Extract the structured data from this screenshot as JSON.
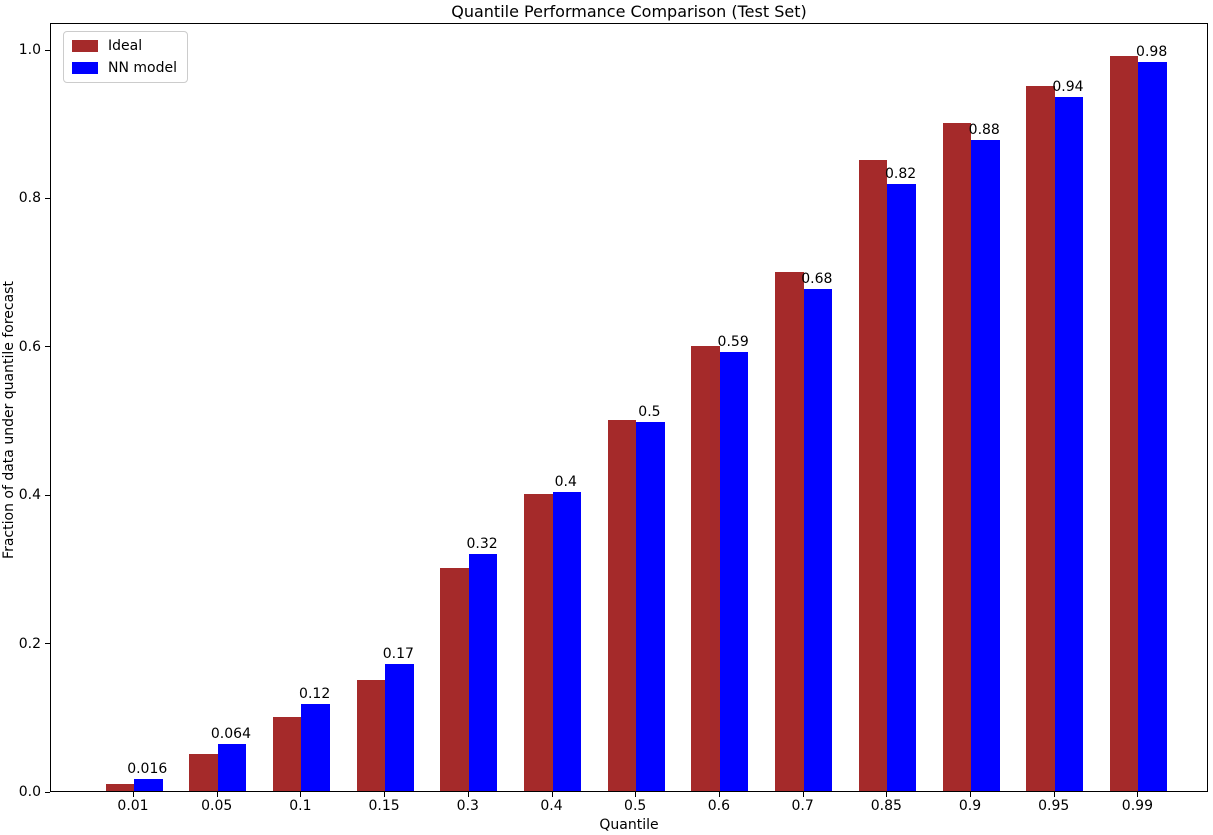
{
  "chart_data": {
    "type": "bar",
    "title": "Quantile Performance Comparison (Test Set)",
    "xlabel": "Quantile",
    "ylabel": "Fraction of data under quantile forecast",
    "categories": [
      "0.01",
      "0.05",
      "0.1",
      "0.15",
      "0.3",
      "0.4",
      "0.5",
      "0.6",
      "0.7",
      "0.85",
      "0.9",
      "0.95",
      "0.99"
    ],
    "series": [
      {
        "name": "Ideal",
        "color": "#A52A2A",
        "values": [
          0.01,
          0.05,
          0.1,
          0.15,
          0.3,
          0.4,
          0.5,
          0.6,
          0.7,
          0.85,
          0.9,
          0.95,
          0.99
        ]
      },
      {
        "name": "NN model",
        "color": "#0000FF",
        "values": [
          0.016,
          0.064,
          0.117,
          0.171,
          0.32,
          0.403,
          0.497,
          0.592,
          0.676,
          0.818,
          0.878,
          0.935,
          0.983
        ],
        "value_labels": [
          "0.016",
          "0.064",
          "0.12",
          "0.17",
          "0.32",
          "0.4",
          "0.5",
          "0.59",
          "0.68",
          "0.82",
          "0.88",
          "0.94",
          "0.98"
        ]
      }
    ],
    "yticks": [
      "0.0",
      "0.2",
      "0.4",
      "0.6",
      "0.8",
      "1.0"
    ],
    "ylim": [
      0,
      1.036
    ],
    "grid": false,
    "legend_position": "upper left",
    "value_labels_on": "NN model",
    "text_color": "#000000",
    "background_color": "#FFFFFF"
  }
}
